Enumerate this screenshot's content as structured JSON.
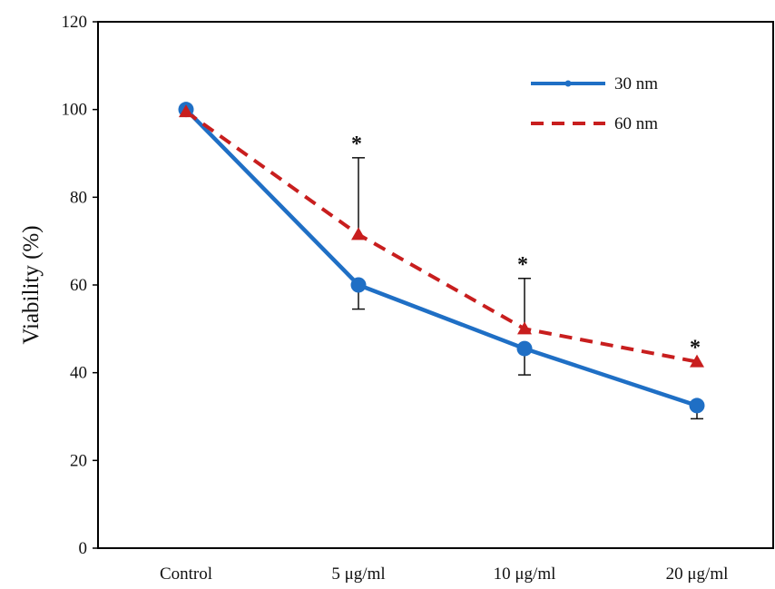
{
  "chart_data": {
    "type": "line",
    "title": "",
    "xlabel": "",
    "ylabel": "Viability  (%)",
    "categories": [
      "Control",
      "5 μg/ml",
      "10 μg/ml",
      "20 μg/ml"
    ],
    "ylim": [
      0,
      120
    ],
    "yticks": [
      0,
      20,
      40,
      60,
      80,
      100,
      120
    ],
    "grid": false,
    "legend_position": "top-right",
    "series": [
      {
        "name": "30 nm",
        "values": [
          100,
          60,
          45.5,
          32.5
        ],
        "error_low": [
          0,
          5.5,
          6,
          3
        ],
        "error_high": [
          0,
          0,
          0,
          0
        ],
        "color": "#1f6fc5",
        "line_style": "solid",
        "marker": "circle"
      },
      {
        "name": "60 nm",
        "values": [
          99.5,
          71.5,
          50,
          42.5
        ],
        "error_low": [
          0,
          0,
          0,
          0
        ],
        "error_high": [
          0,
          17.5,
          11.5,
          0
        ],
        "color": "#c81e1e",
        "line_style": "dashed",
        "marker": "triangle"
      }
    ],
    "significance": [
      {
        "category_index": 1,
        "label": "*"
      },
      {
        "category_index": 2,
        "label": "*"
      },
      {
        "category_index": 3,
        "label": "*"
      }
    ]
  }
}
